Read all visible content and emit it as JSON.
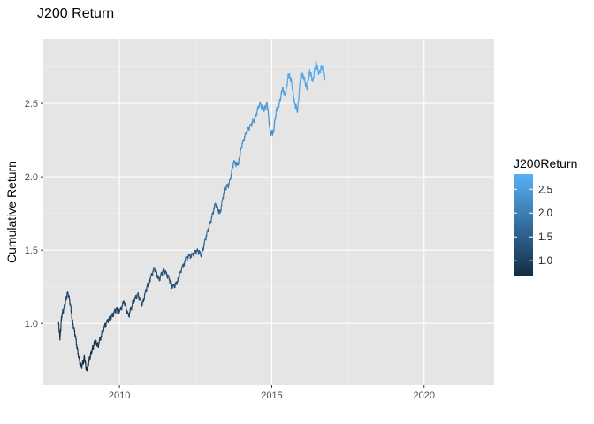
{
  "chart_data": {
    "type": "line",
    "title": "J200 Return",
    "xlabel": "",
    "ylabel": "Cumulative Return",
    "xlim": [
      2007.5,
      2022.3
    ],
    "ylim": [
      0.58,
      2.94
    ],
    "x_ticks": [
      2010,
      2015,
      2020
    ],
    "x_tick_labels": [
      "2010",
      "2015",
      "2020"
    ],
    "y_ticks": [
      1.0,
      1.5,
      2.0,
      2.5
    ],
    "y_tick_labels": [
      "1.0",
      "1.5",
      "2.0",
      "2.5"
    ],
    "grid": true,
    "panel_background": "#e5e5e5",
    "grid_color": "#ffffff",
    "legend": {
      "title": "J200Return",
      "placement": "right",
      "type": "colorbar",
      "range": [
        0.67,
        2.82
      ],
      "ticks": [
        1.0,
        1.5,
        2.0,
        2.5
      ],
      "tick_labels": [
        "1.0",
        "1.5",
        "2.0",
        "2.5"
      ],
      "color_low": "#132b43",
      "color_high": "#56b1f7"
    },
    "series": [
      {
        "x": [
          2008.0,
          2008.05,
          2008.1,
          2008.2,
          2008.3,
          2008.4,
          2008.45,
          2008.55,
          2008.65,
          2008.75,
          2008.85,
          2008.92,
          2009.0,
          2009.1,
          2009.2,
          2009.3,
          2009.45,
          2009.6,
          2009.75,
          2009.9,
          2010.0,
          2010.15,
          2010.3,
          2010.45,
          2010.6,
          2010.75,
          2010.9,
          2011.0,
          2011.15,
          2011.3,
          2011.45,
          2011.6,
          2011.75,
          2011.9,
          2012.0,
          2012.2,
          2012.4,
          2012.55,
          2012.7,
          2012.85,
          2013.0,
          2013.15,
          2013.3,
          2013.45,
          2013.6,
          2013.75,
          2013.9,
          2014.0,
          2014.15,
          2014.3,
          2014.45,
          2014.6,
          2014.75,
          2014.85,
          2014.95,
          2015.05,
          2015.15,
          2015.25,
          2015.35,
          2015.45,
          2015.55,
          2015.65,
          2015.75,
          2015.85,
          2015.95,
          2016.05,
          2016.15,
          2016.25,
          2016.35,
          2016.45,
          2016.55,
          2016.65,
          2016.75
        ],
        "values": [
          1.0,
          0.9,
          1.05,
          1.12,
          1.22,
          1.12,
          1.02,
          0.92,
          0.78,
          0.7,
          0.77,
          0.68,
          0.75,
          0.82,
          0.88,
          0.85,
          0.95,
          1.02,
          1.05,
          1.1,
          1.08,
          1.15,
          1.05,
          1.15,
          1.2,
          1.13,
          1.25,
          1.3,
          1.38,
          1.3,
          1.37,
          1.32,
          1.25,
          1.28,
          1.35,
          1.45,
          1.47,
          1.5,
          1.47,
          1.6,
          1.7,
          1.82,
          1.75,
          1.92,
          1.95,
          2.1,
          2.08,
          2.2,
          2.3,
          2.35,
          2.4,
          2.5,
          2.46,
          2.5,
          2.3,
          2.3,
          2.45,
          2.5,
          2.6,
          2.55,
          2.7,
          2.65,
          2.5,
          2.45,
          2.7,
          2.68,
          2.6,
          2.72,
          2.65,
          2.78,
          2.7,
          2.75,
          2.66
        ]
      }
    ]
  }
}
